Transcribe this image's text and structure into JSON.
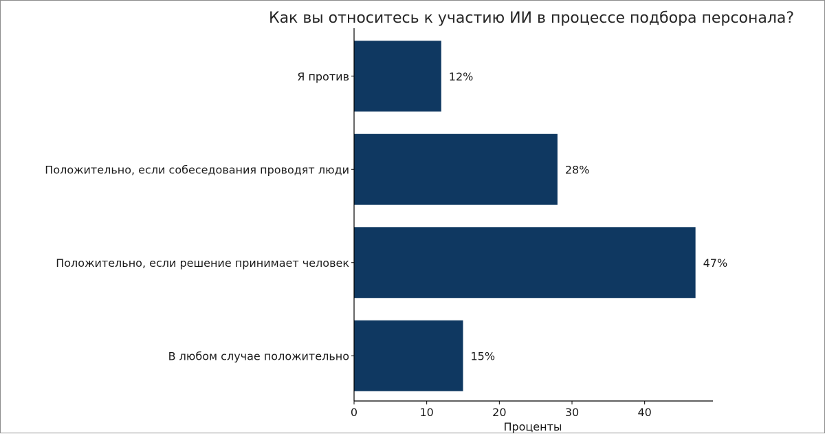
{
  "chart_data": {
    "type": "bar",
    "orientation": "horizontal",
    "title": "Как вы относитесь к участию ИИ в процессе подбора персонала?",
    "xlabel": "Проценты",
    "ylabel": "",
    "categories": [
      "Я против",
      "Положительно, если собеседования проводят люди",
      "Положительно, если решение принимает человек",
      "В любом случае положительно"
    ],
    "values": [
      12,
      28,
      47,
      15
    ],
    "value_labels": [
      "12%",
      "28%",
      "47%",
      "15%"
    ],
    "xlim": [
      0,
      49.4
    ],
    "xticks": [
      0,
      10,
      20,
      30,
      40
    ],
    "xtick_labels": [
      "0",
      "10",
      "20",
      "30",
      "40"
    ],
    "bar_color": "#0f3861",
    "grid": false,
    "legend": "none"
  }
}
